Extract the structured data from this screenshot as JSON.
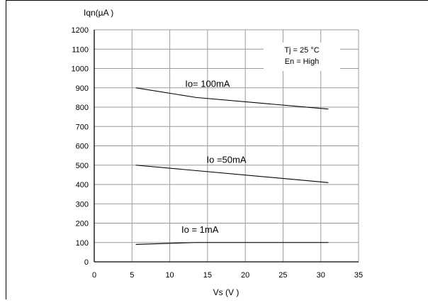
{
  "chart_data": {
    "type": "line",
    "ylabel": "Iqn(µA )",
    "xlabel": "Vs (V )",
    "xlim": [
      0,
      35
    ],
    "ylim": [
      0,
      1200
    ],
    "xticks": [
      0,
      5,
      10,
      15,
      20,
      25,
      30,
      35
    ],
    "yticks": [
      0,
      100,
      200,
      300,
      400,
      500,
      600,
      700,
      800,
      900,
      1000,
      1100,
      1200
    ],
    "grid": true,
    "annotation": [
      "Tj =  25 °C",
      "En = High"
    ],
    "series": [
      {
        "name": "Io= 100mA",
        "x": [
          5.5,
          13.5,
          31
        ],
        "y": [
          900,
          850,
          790
        ]
      },
      {
        "name": "Io =50mA",
        "x": [
          5.5,
          31
        ],
        "y": [
          500,
          410
        ]
      },
      {
        "name": "Io = 1mA",
        "x": [
          5.5,
          13.5,
          31
        ],
        "y": [
          90,
          100,
          100
        ]
      }
    ]
  }
}
